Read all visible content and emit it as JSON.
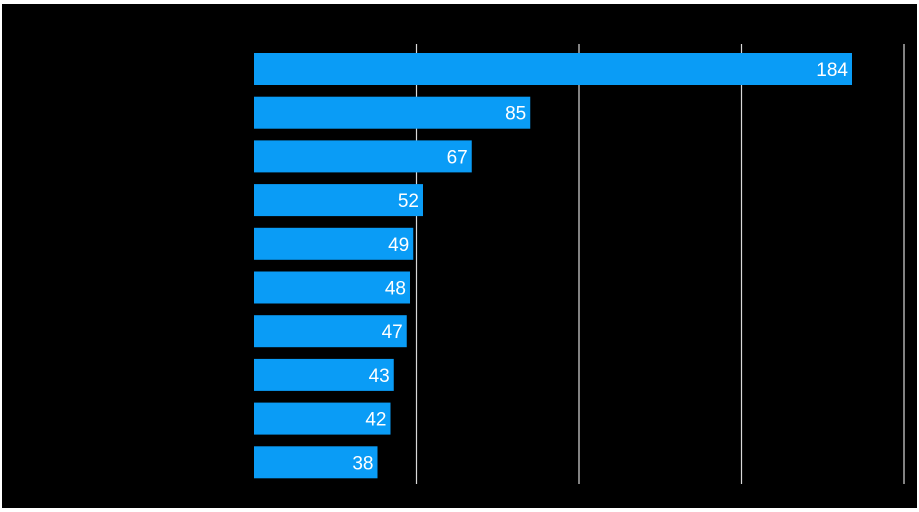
{
  "chart_data": {
    "type": "bar",
    "orientation": "horizontal",
    "categories": [
      "",
      "",
      "",
      "",
      "",
      "",
      "",
      "",
      "",
      ""
    ],
    "values": [
      184,
      85,
      67,
      52,
      49,
      48,
      47,
      43,
      42,
      38
    ],
    "title": "",
    "xlabel": "",
    "ylabel": "",
    "xlim": [
      0,
      200
    ],
    "grid": true,
    "data_labels": true,
    "colors": {
      "bar": "#0a9cf6",
      "background": "#000000",
      "grid": "#d9d9d9",
      "label": "#ffffff"
    }
  }
}
